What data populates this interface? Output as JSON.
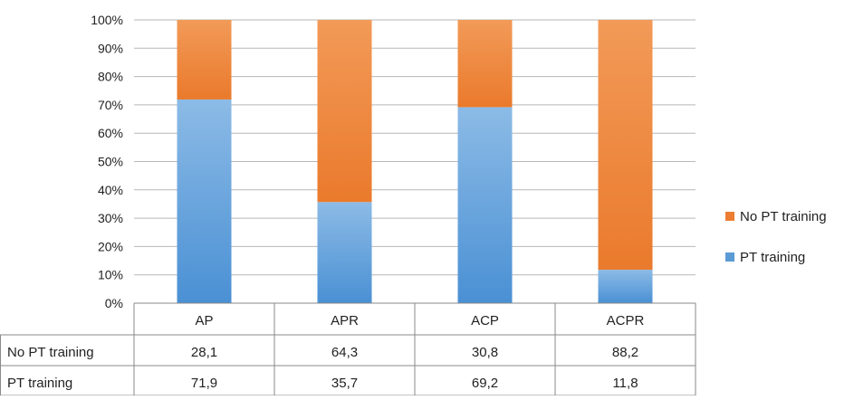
{
  "chart_data": {
    "type": "bar",
    "stacked": true,
    "percent": true,
    "categories": [
      "AP",
      "APR",
      "ACP",
      "ACPR"
    ],
    "series": [
      {
        "name": "PT training",
        "values": [
          71.9,
          35.7,
          69.2,
          11.8
        ],
        "color": "#5b9bd5"
      },
      {
        "name": "No PT training",
        "values": [
          28.1,
          64.3,
          30.8,
          88.2
        ],
        "color": "#ed7d31"
      }
    ],
    "yticks": [
      "0%",
      "10%",
      "20%",
      "30%",
      "40%",
      "50%",
      "60%",
      "70%",
      "80%",
      "90%",
      "100%"
    ],
    "ylim": [
      0,
      100
    ],
    "grid": true,
    "legend": {
      "position": "right",
      "items": [
        "No PT training",
        "PT training"
      ]
    },
    "data_table": {
      "rows": [
        {
          "label": "No PT training",
          "cells": [
            "28,1",
            "64,3",
            "30,8",
            "88,2"
          ]
        },
        {
          "label": "PT training",
          "cells": [
            "71,9",
            "35,7",
            "69,2",
            "11,8"
          ]
        }
      ]
    }
  }
}
